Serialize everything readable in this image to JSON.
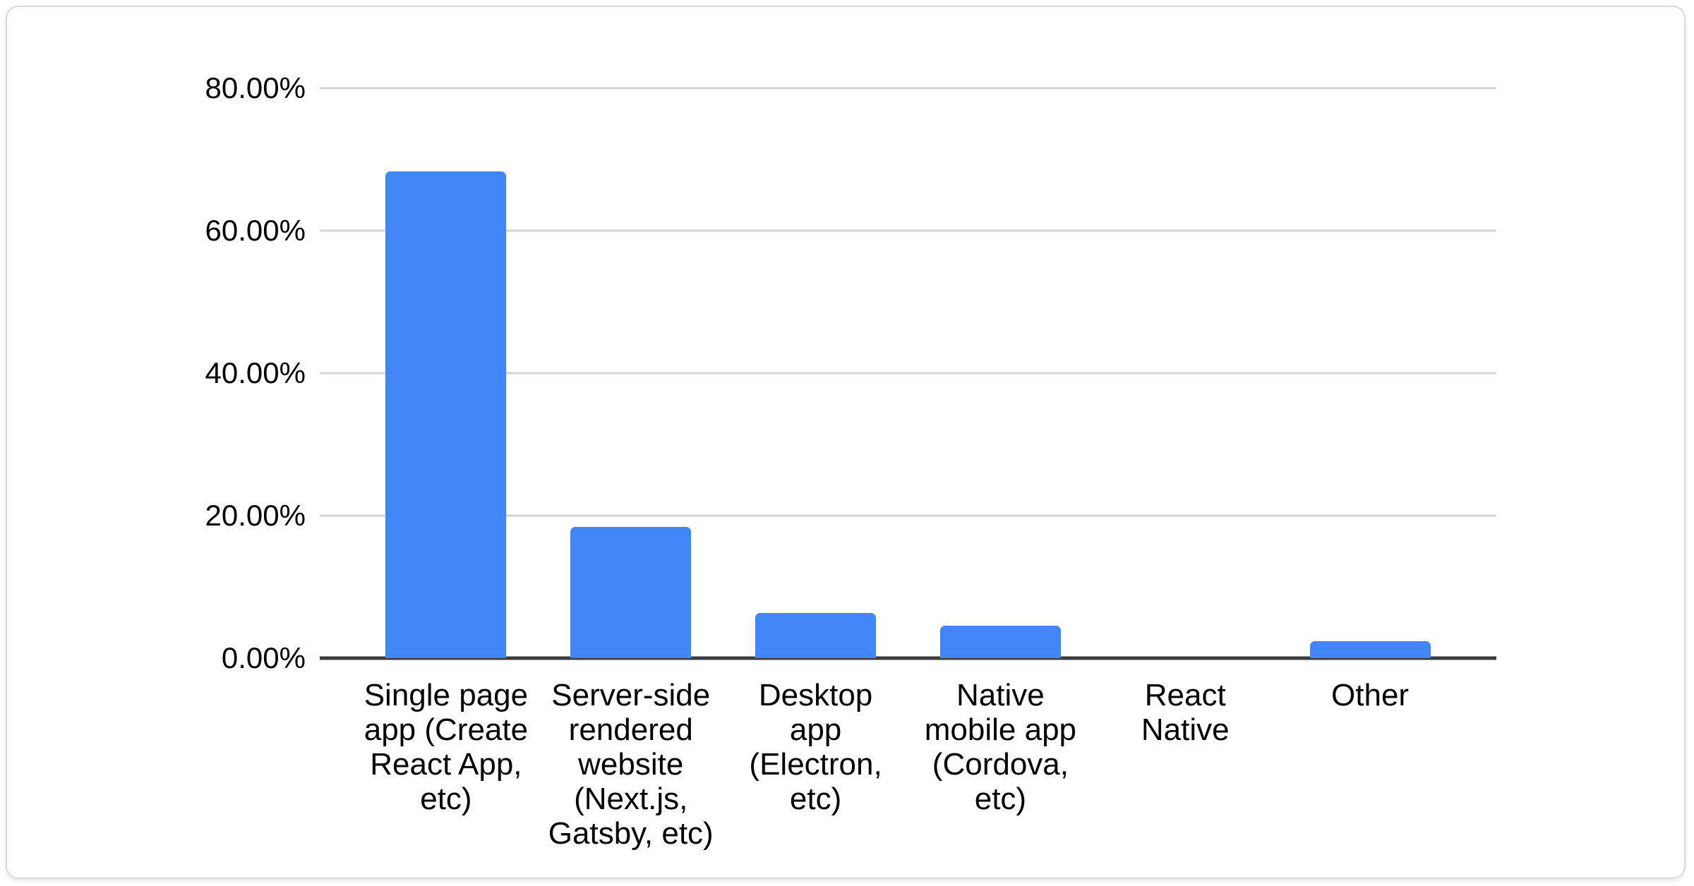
{
  "card": {
    "background": "#ffffff",
    "border_color": "#d9d9d9"
  },
  "chart_data": {
    "type": "bar",
    "title": "",
    "xlabel": "",
    "ylabel": "",
    "categories": [
      "Single page app (Create React App, etc)",
      "Server-side rendered website (Next.js, Gatsby, etc)",
      "Desktop app (Electron, etc)",
      "Native mobile app (Cordova, etc)",
      "React Native",
      "Other"
    ],
    "tick_label_lines": [
      "Single page\napp (Create\nReact App,\netc)",
      "Server-side\nrendered\nwebsite\n(Next.js,\nGatsby, etc)",
      "Desktop\napp\n(Electron,\netc)",
      "Native\nmobile app\n(Cordova,\netc)",
      "React\nNative",
      "Other"
    ],
    "values": [
      68.3,
      18.4,
      6.3,
      4.6,
      0,
      2.4
    ],
    "unit": "%",
    "ylim": [
      0,
      80
    ],
    "yticks": [
      "80.00%",
      "60.00%",
      "40.00%",
      "20.00%",
      "0.00%"
    ],
    "grid": true,
    "legend": "none",
    "bar_color": "#4285f4",
    "gridline_color": "#d6d6d6",
    "axis_line_color": "#3c3c3c",
    "text_color": "#000000"
  }
}
